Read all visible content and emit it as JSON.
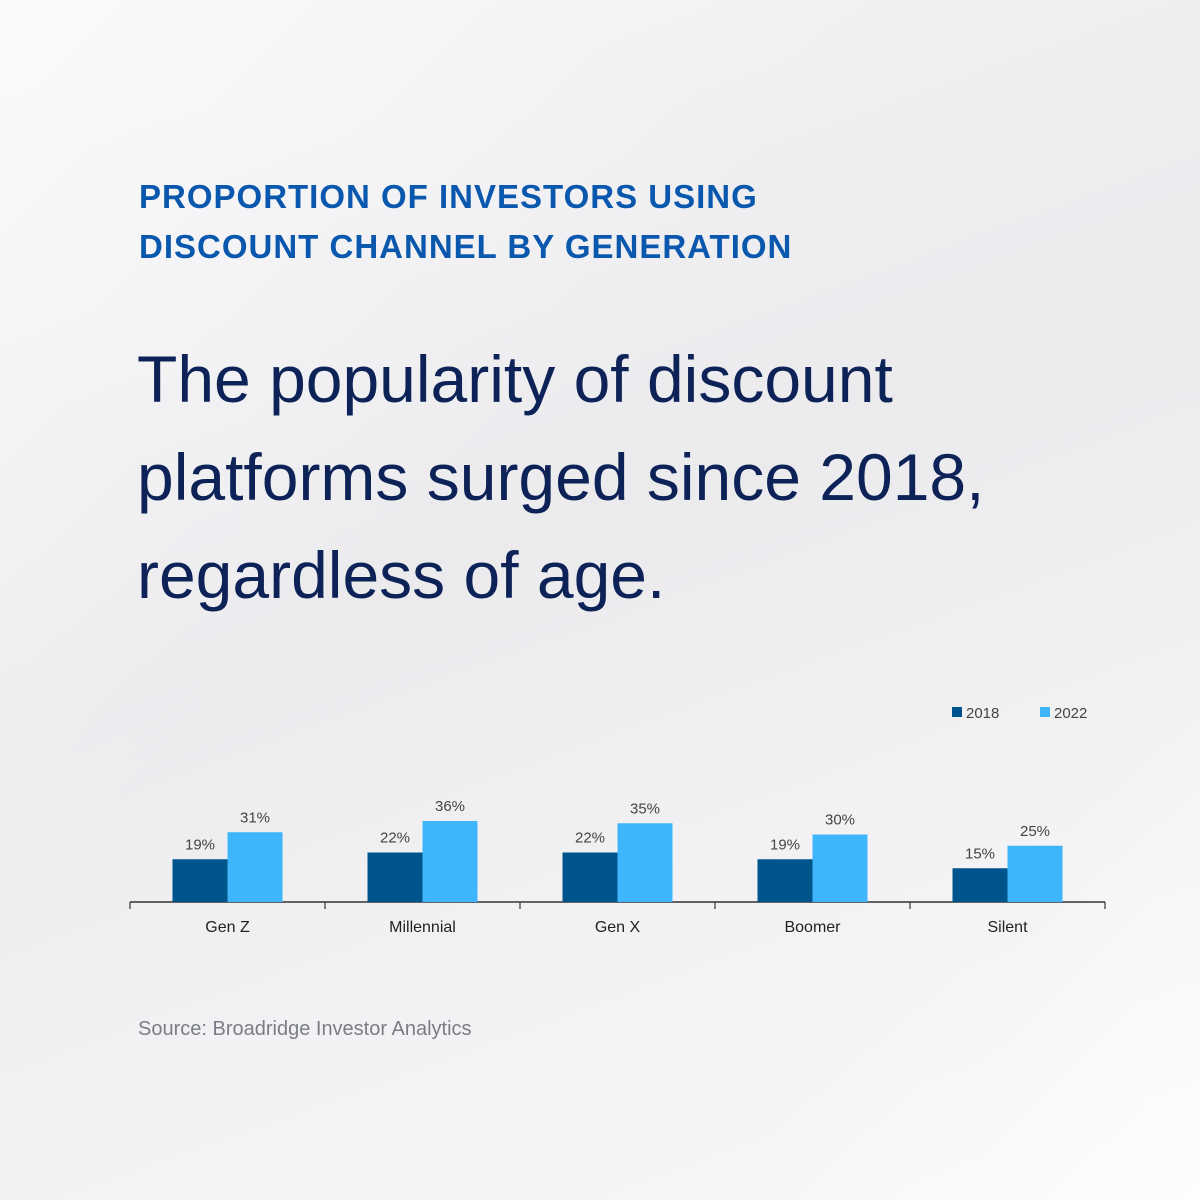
{
  "header": {
    "eyebrow_line1": "PROPORTION OF INVESTORS USING",
    "eyebrow_line2": "DISCOUNT CHANNEL BY GENERATION",
    "headline_line1": "The popularity of discount",
    "headline_line2": "platforms surged since 2018,",
    "headline_line3": "regardless of age."
  },
  "chart_data": {
    "type": "bar",
    "categories": [
      "Gen Z",
      "Millennial",
      "Gen X",
      "Boomer",
      "Silent"
    ],
    "series": [
      {
        "name": "2018",
        "values": [
          19,
          22,
          22,
          19,
          15
        ],
        "color": "#00548c"
      },
      {
        "name": "2022",
        "values": [
          31,
          36,
          35,
          30,
          25
        ],
        "color": "#3fb6fc"
      }
    ],
    "value_suffix": "%",
    "ylim": [
      0,
      100
    ],
    "legend_position": "top-right",
    "grid": false,
    "data_labels": true
  },
  "footer": {
    "source": "Source: Broadridge Investor Analytics"
  },
  "colors": {
    "eyebrow": "#0a58ad",
    "headline": "#0d2257",
    "source": "#7a7d85",
    "axis": "#333333",
    "label": "#444444"
  }
}
